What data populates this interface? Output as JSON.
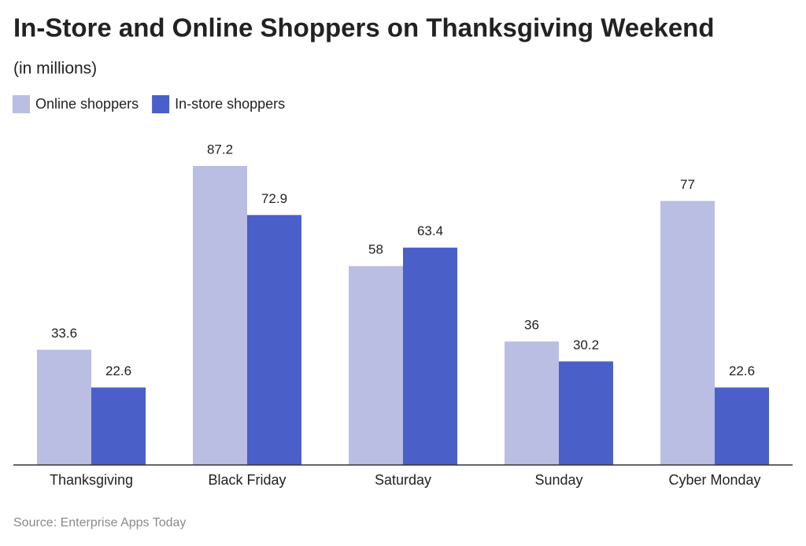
{
  "chart_data": {
    "type": "bar",
    "title": "In-Store and Online Shoppers on Thanksgiving Weekend",
    "subtitle": "(in millions)",
    "categories": [
      "Thanksgiving",
      "Black Friday",
      "Saturday",
      "Sunday",
      "Cyber Monday"
    ],
    "series": [
      {
        "name": "Online shoppers",
        "color": "#b9bee2",
        "values": [
          33.6,
          87.2,
          58,
          36,
          77
        ]
      },
      {
        "name": "In-store shoppers",
        "color": "#4b5fc9",
        "values": [
          22.6,
          72.9,
          63.4,
          30.2,
          22.6
        ]
      }
    ],
    "source": "Source: Enterprise Apps Today"
  }
}
